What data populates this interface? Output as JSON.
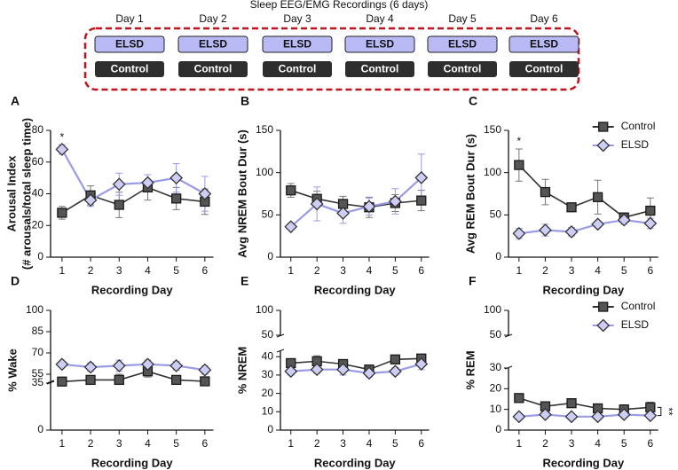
{
  "header": {
    "title": "Sleep EEG/EMG Recordings (6 days)",
    "days": [
      "Day 1",
      "Day 2",
      "Day 3",
      "Day 4",
      "Day 5",
      "Day 6"
    ],
    "top_boxes": [
      "ELSD",
      "ELSD",
      "ELSD",
      "ELSD",
      "ELSD",
      "ELSD"
    ],
    "bottom_boxes": [
      "Control",
      "Control",
      "Control",
      "Control",
      "Control",
      "Control"
    ]
  },
  "chart_data": [
    {
      "type": "line",
      "label": "A",
      "xlabel": "Recording Day",
      "ylabel": [
        "Arousal  Index",
        "(# arousals/total sleep time)"
      ],
      "x": [
        1,
        2,
        3,
        4,
        5,
        6
      ],
      "xlim": [
        0.6,
        6.3
      ],
      "xticks": [
        1,
        2,
        3,
        4,
        5,
        6
      ],
      "ylim": [
        0,
        80
      ],
      "yticks": [
        0,
        20,
        40,
        60,
        80
      ],
      "series": [
        {
          "color": "#333333",
          "marker": "square",
          "values": [
            28,
            39,
            33,
            44,
            37,
            35
          ],
          "errors": [
            4,
            6,
            8,
            8,
            7,
            8
          ]
        },
        {
          "color": "#9a9ae8",
          "marker": "diamond",
          "values": [
            68,
            36,
            46,
            47,
            50,
            40
          ],
          "errors": [
            3,
            4,
            7,
            5,
            9,
            11
          ]
        }
      ],
      "annotations": [
        {
          "text": "*",
          "x": 1
        }
      ]
    },
    {
      "type": "line",
      "label": "B",
      "xlabel": "Recording Day",
      "ylabel": "Avg NREM Bout Dur (s)",
      "x": [
        1,
        2,
        3,
        4,
        5,
        6
      ],
      "xlim": [
        0.6,
        6.3
      ],
      "xticks": [
        1,
        2,
        3,
        4,
        5,
        6
      ],
      "ylim": [
        0,
        150
      ],
      "yticks": [
        0,
        50,
        100,
        150
      ],
      "series": [
        {
          "color": "#333333",
          "marker": "square",
          "values": [
            79,
            69,
            63,
            59,
            64,
            67
          ],
          "errors": [
            8,
            9,
            9,
            12,
            10,
            12
          ]
        },
        {
          "color": "#9a9ae8",
          "marker": "diamond",
          "values": [
            36,
            63,
            52,
            60,
            66,
            94
          ],
          "errors": [
            3,
            20,
            12,
            10,
            15,
            28
          ]
        }
      ]
    },
    {
      "type": "line",
      "label": "C",
      "xlabel": "Recording Day",
      "ylabel": "Avg REM Bout Dur (s)",
      "x": [
        1,
        2,
        3,
        4,
        5,
        6
      ],
      "xlim": [
        0.6,
        6.3
      ],
      "xticks": [
        1,
        2,
        3,
        4,
        5,
        6
      ],
      "ylim": [
        0,
        150
      ],
      "yticks": [
        0,
        50,
        100,
        150
      ],
      "legend": "upper right",
      "series": [
        {
          "name": "Control",
          "color": "#333333",
          "marker": "square",
          "values": [
            109,
            77,
            59,
            71,
            47,
            55
          ],
          "errors": [
            19,
            15,
            4,
            20,
            5,
            15
          ]
        },
        {
          "name": "ELSD",
          "color": "#9a9ae8",
          "marker": "diamond",
          "values": [
            28,
            32,
            30,
            39,
            44,
            40
          ],
          "errors": [
            6,
            7,
            5,
            4,
            5,
            6
          ]
        }
      ],
      "annotations": [
        {
          "text": "*",
          "x": 1
        }
      ]
    },
    {
      "type": "line",
      "label": "D",
      "xlabel": "Recording Day",
      "ylabel": "% Wake",
      "x": [
        1,
        2,
        3,
        4,
        5,
        6
      ],
      "xlim": [
        0.6,
        6.3
      ],
      "xticks": [
        1,
        2,
        3,
        4,
        5,
        6
      ],
      "ylim": [
        0,
        100
      ],
      "ybreak": [
        35,
        50
      ],
      "yticks": [
        0,
        35,
        55,
        70,
        85,
        100
      ],
      "series": [
        {
          "color": "#333333",
          "marker": "square",
          "values": [
            48,
            51,
            51,
            57,
            51,
            50
          ],
          "errors": [
            3,
            3,
            4,
            4,
            3,
            3
          ]
        },
        {
          "color": "#9a9ae8",
          "marker": "diamond",
          "values": [
            62,
            60,
            61,
            62,
            61,
            58
          ],
          "errors": [
            2,
            3,
            4,
            3,
            3,
            3
          ]
        }
      ]
    },
    {
      "type": "line",
      "label": "E",
      "xlabel": "Recording Day",
      "ylabel": "% NREM",
      "x": [
        1,
        2,
        3,
        4,
        5,
        6
      ],
      "xlim": [
        0.6,
        6.3
      ],
      "xticks": [
        1,
        2,
        3,
        4,
        5,
        6
      ],
      "ylim": [
        0,
        100
      ],
      "ybreak": [
        43,
        50
      ],
      "yticks": [
        0,
        10,
        20,
        30,
        40,
        50,
        100
      ],
      "series": [
        {
          "color": "#333333",
          "marker": "square",
          "values": [
            36.5,
            37.5,
            36,
            33,
            38.5,
            39
          ],
          "errors": [
            2,
            3,
            2,
            2,
            2,
            2
          ]
        },
        {
          "color": "#9a9ae8",
          "marker": "diamond",
          "values": [
            32,
            33,
            33,
            31,
            32,
            36
          ],
          "errors": [
            2,
            2,
            3,
            2,
            2,
            3
          ]
        }
      ]
    },
    {
      "type": "line",
      "label": "F",
      "xlabel": "Recording Day",
      "ylabel": "% REM",
      "x": [
        1,
        2,
        3,
        4,
        5,
        6
      ],
      "xlim": [
        0.6,
        6.3
      ],
      "xticks": [
        1,
        2,
        3,
        4,
        5,
        6
      ],
      "ylim": [
        0,
        100
      ],
      "ybreak": [
        30,
        50
      ],
      "yticks": [
        0,
        10,
        20,
        30,
        50,
        100
      ],
      "legend": "upper right",
      "series": [
        {
          "name": "Control",
          "color": "#333333",
          "marker": "square",
          "values": [
            15.5,
            11.5,
            13,
            10.5,
            10,
            11
          ],
          "errors": [
            1.5,
            1.5,
            2,
            1.5,
            2,
            2.5
          ]
        },
        {
          "name": "ELSD",
          "color": "#9a9ae8",
          "marker": "diamond",
          "values": [
            6.5,
            7.5,
            6.5,
            6.5,
            7.5,
            7
          ],
          "errors": [
            1,
            1,
            1,
            1,
            1,
            1
          ]
        }
      ],
      "annotations": [
        {
          "text": "**"
        }
      ]
    }
  ]
}
